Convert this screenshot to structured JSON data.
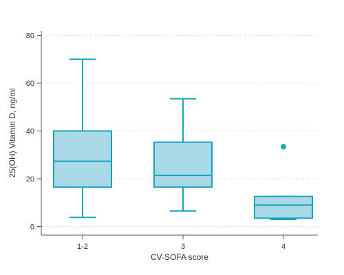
{
  "chart_data": {
    "type": "box",
    "xlabel": "CV-SOFA score",
    "ylabel": "25(OH) Vitamin D, ng/ml",
    "ylim": [
      0,
      85
    ],
    "yticks": [
      0,
      20,
      40,
      60,
      80
    ],
    "grid": true,
    "categories": [
      "1-2",
      "3",
      "4"
    ],
    "boxes": [
      {
        "category": "1-2",
        "whisker_low": 3.8,
        "q1": 16.5,
        "median": 27.3,
        "q3": 40.0,
        "whisker_high": 70.0,
        "outliers": []
      },
      {
        "category": "3",
        "whisker_low": 6.5,
        "q1": 16.5,
        "median": 21.4,
        "q3": 35.3,
        "whisker_high": 53.5,
        "outliers": []
      },
      {
        "category": "4",
        "whisker_low": 3.0,
        "q1": 3.5,
        "median": 9.0,
        "q3": 12.6,
        "whisker_high": 12.6,
        "outliers": [
          33.4
        ]
      }
    ],
    "colors": {
      "box_fill": "#a9d9e6",
      "box_stroke": "#1aa3bd",
      "outlier": "#1aa3bd",
      "grid": "#e3e3e3",
      "axis": "#555555"
    }
  }
}
